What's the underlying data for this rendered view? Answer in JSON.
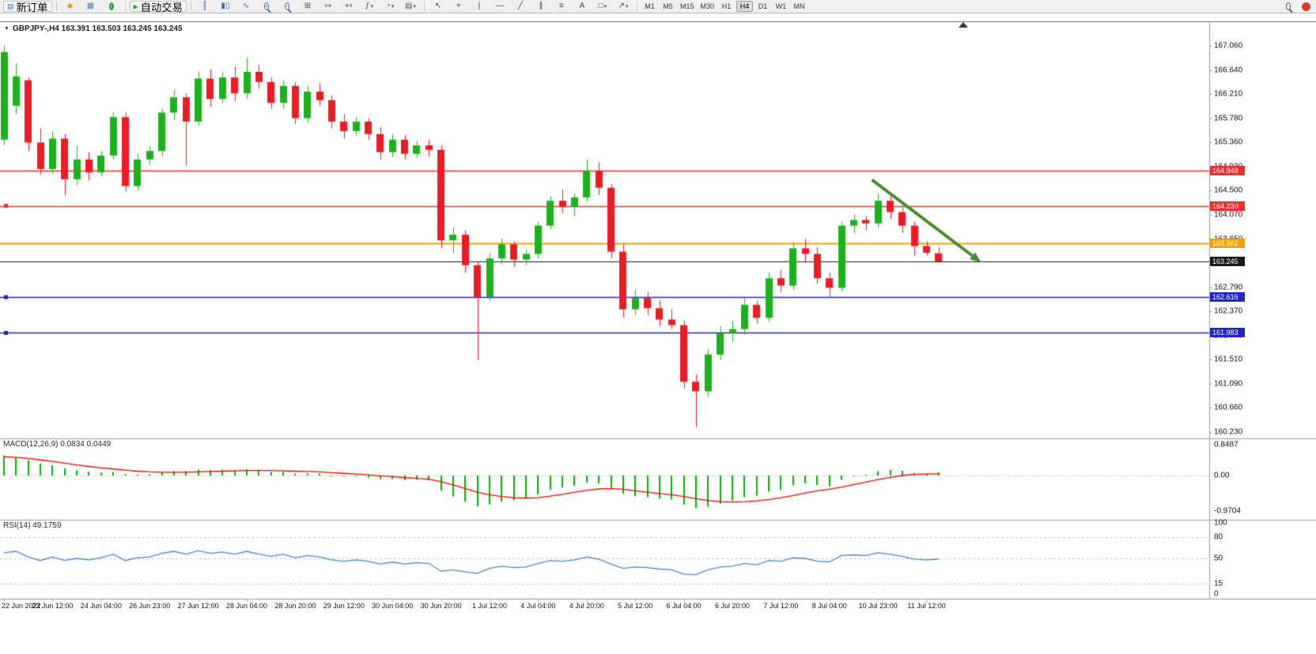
{
  "toolbar": {
    "new_order_label": "新订单",
    "autotrading_label": "自动交易",
    "standard_icons": [
      {
        "name": "market-watch-icon",
        "glyph": "◆",
        "color": "#d9a21b"
      },
      {
        "name": "data-window-icon",
        "glyph": "▦",
        "color": "#5b7fae"
      },
      {
        "name": "navigator-icon",
        "glyph": "i",
        "color": "#2f9e44"
      }
    ],
    "chart_icons": [
      {
        "name": "bar-chart-icon",
        "glyph": "║",
        "color": "#3a6ea5"
      },
      {
        "name": "candlestick-chart-icon",
        "glyph": "▮▯",
        "color": "#3a6ea5"
      },
      {
        "name": "line-chart-icon",
        "glyph": "∿",
        "color": "#3a6ea5"
      },
      {
        "name": "zoom-in-icon",
        "glyph": "+",
        "color": "#4a6fa5",
        "mag": true
      },
      {
        "name": "zoom-out-icon",
        "glyph": "−",
        "color": "#4a6fa5",
        "mag": true
      },
      {
        "name": "tile-windows-icon",
        "glyph": "⊞",
        "color": "#555555"
      },
      {
        "name": "auto-scroll-icon",
        "glyph": "↦",
        "color": "#3d7a3d"
      },
      {
        "name": "chart-shift-icon",
        "glyph": "↤",
        "color": "#555555"
      },
      {
        "name": "indicators-icon",
        "glyph": "ƒ",
        "color": "#1f7a33",
        "dropdown": true
      },
      {
        "name": "periods-icon",
        "glyph": "◔",
        "color": "#555555",
        "dropdown": true
      },
      {
        "name": "templates-icon",
        "glyph": "▤",
        "color": "#555555",
        "dropdown": true
      }
    ],
    "line_tool_icons": [
      {
        "name": "cursor-icon",
        "glyph": "↖",
        "color": "#444444"
      },
      {
        "name": "crosshair-icon",
        "glyph": "+",
        "color": "#444444"
      },
      {
        "name": "vertical-line-icon",
        "glyph": "|",
        "color": "#444444"
      },
      {
        "name": "horizontal-line-icon",
        "glyph": "—",
        "color": "#444444"
      },
      {
        "name": "trendline-icon",
        "glyph": "╱",
        "color": "#444444"
      },
      {
        "name": "channel-icon",
        "glyph": "∥",
        "color": "#444444"
      },
      {
        "name": "fibonacci-icon",
        "glyph": "≡",
        "color": "#444444"
      },
      {
        "name": "text-icon",
        "glyph": "A",
        "color": "#444444"
      },
      {
        "name": "shapes-icon",
        "glyph": "□",
        "color": "#444444",
        "dropdown": true
      },
      {
        "name": "arrows-icon",
        "glyph": "↗",
        "color": "#444444",
        "dropdown": true
      }
    ],
    "timeframes": [
      "M1",
      "M5",
      "M15",
      "M30",
      "H1",
      "H4",
      "D1",
      "W1",
      "MN"
    ],
    "active_timeframe": "H4"
  },
  "chart": {
    "title": "GBPJPY-,H4 163.391 163.503 163.245 163.245"
  },
  "panels": {
    "macd": {
      "label": "MACD(12,26,9) 0.0834 0.0449"
    },
    "rsi": {
      "label": "RSI(14) 49.1759"
    }
  },
  "colors": {
    "bull": "#1cb21c",
    "bear": "#ed1c24",
    "macd_histogram": "#00b200",
    "macd_signal": "#ff0000",
    "rsi_line": "#4a86c8",
    "arrow": "#4a8b2f",
    "level_red": "#f03030",
    "level_orange": "#f5a100",
    "level_blue": "#2323cc",
    "current_price": "#1a1a1a"
  },
  "chart_data": {
    "type": "candlestick",
    "symbol": "GBPJPY-",
    "timeframe": "H4",
    "ylim": [
      160.23,
      167.06
    ],
    "price_axis_labels": [
      "167.060",
      "166.640",
      "166.210",
      "165.780",
      "165.360",
      "164.930",
      "164.500",
      "164.070",
      "163.650",
      "163.220",
      "162.790",
      "162.370",
      "161.940",
      "161.510",
      "161.090",
      "160.660",
      "160.230"
    ],
    "x_labels": [
      "22 Jun 2022",
      "23 Jun 12:00",
      "24 Jun 04:00",
      "26 Jun 23:00",
      "27 Jun 12:00",
      "28 Jun 04:00",
      "28 Jun 20:00",
      "29 Jun 12:00",
      "30 Jun 04:00",
      "30 Jun 20:00",
      "1 Jul 12:00",
      "4 Jul 04:00",
      "4 Jul 20:00",
      "5 Jul 12:00",
      "6 Jul 04:00",
      "6 Jul 20:00",
      "7 Jul 12:00",
      "8 Jul 04:00",
      "10 Jul 23:00",
      "11 Jul 12:00"
    ],
    "x_label_every_n_candles": 4,
    "ohlc": [
      [
        165.4,
        167.06,
        165.3,
        166.95
      ],
      [
        166.0,
        166.75,
        165.85,
        166.52
      ],
      [
        166.45,
        166.5,
        165.2,
        165.35
      ],
      [
        165.35,
        165.6,
        164.78,
        164.88
      ],
      [
        164.88,
        165.55,
        164.8,
        165.42
      ],
      [
        165.42,
        165.5,
        164.42,
        164.7
      ],
      [
        164.7,
        165.3,
        164.6,
        165.05
      ],
      [
        165.05,
        165.18,
        164.68,
        164.82
      ],
      [
        164.82,
        165.2,
        164.75,
        165.12
      ],
      [
        165.12,
        165.88,
        165.05,
        165.8
      ],
      [
        165.8,
        165.88,
        164.48,
        164.58
      ],
      [
        164.58,
        165.15,
        164.5,
        165.05
      ],
      [
        165.05,
        165.28,
        164.95,
        165.2
      ],
      [
        165.2,
        165.95,
        165.1,
        165.88
      ],
      [
        165.88,
        166.28,
        165.75,
        166.15
      ],
      [
        166.15,
        166.22,
        164.95,
        165.72
      ],
      [
        165.72,
        166.6,
        165.65,
        166.48
      ],
      [
        166.48,
        166.65,
        165.98,
        166.12
      ],
      [
        166.12,
        166.6,
        166.05,
        166.5
      ],
      [
        166.5,
        166.7,
        166.08,
        166.22
      ],
      [
        166.22,
        166.85,
        166.12,
        166.6
      ],
      [
        166.6,
        166.72,
        166.3,
        166.42
      ],
      [
        166.42,
        166.5,
        165.95,
        166.05
      ],
      [
        166.05,
        166.45,
        165.95,
        166.35
      ],
      [
        166.35,
        166.42,
        165.68,
        165.78
      ],
      [
        165.78,
        166.35,
        165.7,
        166.25
      ],
      [
        166.25,
        166.4,
        166.0,
        166.1
      ],
      [
        166.1,
        166.18,
        165.6,
        165.72
      ],
      [
        165.72,
        165.85,
        165.42,
        165.55
      ],
      [
        165.55,
        165.8,
        165.48,
        165.72
      ],
      [
        165.72,
        165.78,
        165.4,
        165.5
      ],
      [
        165.5,
        165.62,
        165.05,
        165.18
      ],
      [
        165.18,
        165.5,
        165.1,
        165.4
      ],
      [
        165.4,
        165.48,
        165.05,
        165.15
      ],
      [
        165.15,
        165.38,
        165.08,
        165.3
      ],
      [
        165.3,
        165.4,
        165.1,
        165.22
      ],
      [
        165.22,
        165.3,
        163.48,
        163.62
      ],
      [
        163.62,
        163.85,
        163.4,
        163.72
      ],
      [
        163.72,
        163.8,
        163.05,
        163.18
      ],
      [
        163.18,
        163.25,
        161.5,
        162.62
      ],
      [
        162.62,
        163.4,
        162.55,
        163.3
      ],
      [
        163.3,
        163.65,
        163.2,
        163.55
      ],
      [
        163.55,
        163.6,
        163.15,
        163.28
      ],
      [
        163.28,
        163.45,
        163.18,
        163.38
      ],
      [
        163.38,
        163.95,
        163.3,
        163.88
      ],
      [
        163.88,
        164.4,
        163.82,
        164.32
      ],
      [
        164.32,
        164.52,
        164.1,
        164.22
      ],
      [
        164.22,
        164.45,
        164.05,
        164.38
      ],
      [
        164.38,
        165.05,
        164.3,
        164.85
      ],
      [
        164.85,
        165.0,
        164.42,
        164.55
      ],
      [
        164.55,
        164.62,
        163.3,
        163.42
      ],
      [
        163.42,
        163.55,
        162.25,
        162.4
      ],
      [
        162.4,
        162.75,
        162.3,
        162.6
      ],
      [
        162.6,
        162.7,
        162.3,
        162.42
      ],
      [
        162.42,
        162.55,
        162.1,
        162.22
      ],
      [
        162.22,
        162.4,
        162.05,
        162.12
      ],
      [
        162.12,
        162.2,
        161.0,
        161.12
      ],
      [
        161.12,
        161.25,
        160.32,
        160.95
      ],
      [
        160.95,
        161.7,
        160.85,
        161.6
      ],
      [
        161.6,
        162.1,
        161.5,
        161.98
      ],
      [
        161.98,
        162.2,
        161.82,
        162.05
      ],
      [
        162.05,
        162.62,
        161.95,
        162.48
      ],
      [
        162.48,
        162.55,
        162.15,
        162.25
      ],
      [
        162.25,
        163.05,
        162.18,
        162.95
      ],
      [
        162.95,
        163.1,
        162.7,
        162.82
      ],
      [
        162.82,
        163.58,
        162.75,
        163.48
      ],
      [
        163.48,
        163.65,
        163.25,
        163.38
      ],
      [
        163.38,
        163.5,
        162.85,
        162.95
      ],
      [
        162.95,
        163.05,
        162.6,
        162.78
      ],
      [
        162.78,
        163.95,
        162.72,
        163.88
      ],
      [
        163.88,
        164.08,
        163.75,
        163.98
      ],
      [
        163.98,
        164.05,
        163.8,
        163.92
      ],
      [
        163.92,
        164.45,
        163.85,
        164.32
      ],
      [
        164.32,
        164.4,
        164.0,
        164.12
      ],
      [
        164.12,
        164.2,
        163.75,
        163.88
      ],
      [
        163.88,
        163.95,
        163.35,
        163.52
      ],
      [
        163.52,
        163.6,
        163.35,
        163.4
      ],
      [
        163.391,
        163.503,
        163.245,
        163.245
      ]
    ],
    "horizontal_lines": [
      {
        "price": 164.848,
        "label": "164.848",
        "color": "#f03030",
        "width": 1.5,
        "handles": false
      },
      {
        "price": 164.23,
        "label": "164.230",
        "color": "#f03030",
        "width": 1.5,
        "handles": true
      },
      {
        "price": 163.562,
        "label": "163.562",
        "color": "#f5a100",
        "width": 2,
        "handles": false
      },
      {
        "price": 163.245,
        "label": "163.245",
        "color": "#1a1a1a",
        "width": 1,
        "handles": false,
        "is_current_price": true
      },
      {
        "price": 162.616,
        "label": "162.616",
        "color": "#2323cc",
        "width": 1.5,
        "handles": true
      },
      {
        "price": 161.983,
        "label": "161.983",
        "color": "#2323cc",
        "width": 1.5,
        "handles": true
      }
    ],
    "arrow_annotation": {
      "from_candle": 71.5,
      "from_price": 164.69,
      "to_candle": 80.5,
      "to_price": 163.23
    },
    "macd": {
      "axis": [
        {
          "text": "0.8487",
          "v": 0.8487
        },
        {
          "text": "0.00",
          "v": 0
        },
        {
          "text": "-0.9704",
          "v": -0.9704
        }
      ],
      "histogram": [
        0.55,
        0.5,
        0.42,
        0.33,
        0.28,
        0.2,
        0.14,
        0.1,
        0.08,
        0.1,
        0.04,
        0.03,
        0.04,
        0.08,
        0.12,
        0.12,
        0.16,
        0.15,
        0.16,
        0.15,
        0.17,
        0.14,
        0.1,
        0.1,
        0.05,
        0.06,
        0.06,
        0.01,
        -0.03,
        -0.03,
        -0.06,
        -0.1,
        -0.1,
        -0.13,
        -0.12,
        -0.13,
        -0.42,
        -0.58,
        -0.72,
        -0.85,
        -0.8,
        -0.72,
        -0.68,
        -0.62,
        -0.52,
        -0.4,
        -0.33,
        -0.28,
        -0.2,
        -0.22,
        -0.35,
        -0.5,
        -0.57,
        -0.6,
        -0.63,
        -0.66,
        -0.8,
        -0.9,
        -0.86,
        -0.78,
        -0.7,
        -0.6,
        -0.56,
        -0.44,
        -0.4,
        -0.27,
        -0.22,
        -0.26,
        -0.3,
        -0.12,
        -0.02,
        0.02,
        0.12,
        0.16,
        0.13,
        0.06,
        0.05,
        0.0834
      ],
      "signal": [
        0.52,
        0.5,
        0.47,
        0.43,
        0.39,
        0.34,
        0.29,
        0.25,
        0.21,
        0.18,
        0.15,
        0.12,
        0.1,
        0.09,
        0.09,
        0.09,
        0.1,
        0.11,
        0.12,
        0.13,
        0.14,
        0.14,
        0.14,
        0.13,
        0.12,
        0.11,
        0.1,
        0.08,
        0.06,
        0.04,
        0.02,
        -0.01,
        -0.03,
        -0.06,
        -0.08,
        -0.1,
        -0.17,
        -0.26,
        -0.36,
        -0.46,
        -0.53,
        -0.58,
        -0.61,
        -0.62,
        -0.61,
        -0.57,
        -0.52,
        -0.46,
        -0.41,
        -0.37,
        -0.36,
        -0.38,
        -0.42,
        -0.46,
        -0.5,
        -0.53,
        -0.58,
        -0.64,
        -0.69,
        -0.72,
        -0.73,
        -0.72,
        -0.7,
        -0.66,
        -0.61,
        -0.55,
        -0.48,
        -0.42,
        -0.38,
        -0.32,
        -0.25,
        -0.18,
        -0.11,
        -0.05,
        0.0,
        0.03,
        0.04,
        0.0449
      ]
    },
    "rsi": {
      "axis": [
        {
          "text": "100",
          "v": 100
        },
        {
          "text": "80",
          "v": 80
        },
        {
          "text": "50",
          "v": 50
        },
        {
          "text": "15",
          "v": 15
        },
        {
          "text": "0",
          "v": 0
        }
      ],
      "levels": [
        80,
        50,
        15
      ],
      "values": [
        58,
        60,
        52,
        47,
        52,
        47,
        50,
        48,
        51,
        56,
        47,
        51,
        52,
        57,
        60,
        56,
        61,
        57,
        59,
        56,
        60,
        56,
        53,
        56,
        51,
        54,
        52,
        48,
        46,
        48,
        46,
        42,
        45,
        42,
        44,
        43,
        32,
        34,
        31,
        29,
        36,
        39,
        37,
        38,
        43,
        47,
        46,
        48,
        52,
        49,
        42,
        36,
        38,
        37,
        35,
        34,
        28,
        27,
        34,
        38,
        39,
        43,
        41,
        47,
        46,
        51,
        50,
        46,
        45,
        54,
        55,
        54,
        58,
        56,
        53,
        49,
        48,
        49.18
      ]
    }
  }
}
